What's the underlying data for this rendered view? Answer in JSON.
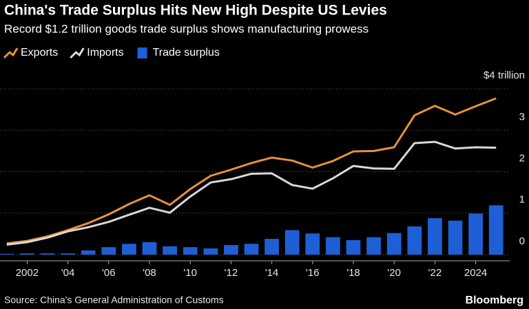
{
  "chart_data": {
    "type": "bar-line",
    "title": "China's Trade Surplus Hits New High Despite US Levies",
    "subtitle": "Record $1.2 trillion goods trade surplus shows manufacturing prowess",
    "source": "Source: China's General Administration of Customs",
    "brand": "Bloomberg",
    "x": [
      2001,
      2002,
      2003,
      2004,
      2005,
      2006,
      2007,
      2008,
      2009,
      2010,
      2011,
      2012,
      2013,
      2014,
      2015,
      2016,
      2017,
      2018,
      2019,
      2020,
      2021,
      2022,
      2023,
      2024,
      2025
    ],
    "xlim": [
      2000.5,
      2025.5
    ],
    "xticks": [
      2002,
      {
        "value": 2004,
        "label": "'04"
      },
      {
        "value": 2006,
        "label": "'06"
      },
      {
        "value": 2008,
        "label": "'08"
      },
      {
        "value": 2010,
        "label": "'10"
      },
      {
        "value": 2012,
        "label": "'12"
      },
      {
        "value": 2014,
        "label": "'14"
      },
      {
        "value": 2016,
        "label": "'16"
      },
      {
        "value": 2018,
        "label": "'18"
      },
      {
        "value": 2020,
        "label": "'20"
      },
      {
        "value": 2022,
        "label": "'22"
      },
      2024
    ],
    "ylim": [
      -0.15,
      4.25
    ],
    "yticks": [
      0,
      1,
      2,
      3,
      {
        "value": 4,
        "label": "$4 trillion"
      }
    ],
    "grid": true,
    "series": [
      {
        "name": "Exports",
        "color": "#e8913a",
        "kind": "line",
        "values": [
          0.27,
          0.33,
          0.44,
          0.59,
          0.76,
          0.97,
          1.22,
          1.43,
          1.2,
          1.58,
          1.9,
          2.05,
          2.21,
          2.34,
          2.27,
          2.1,
          2.26,
          2.49,
          2.5,
          2.59,
          3.36,
          3.59,
          3.38,
          3.58,
          3.77
        ]
      },
      {
        "name": "Imports",
        "color": "#d9d9d9",
        "kind": "line",
        "values": [
          0.24,
          0.3,
          0.41,
          0.56,
          0.66,
          0.79,
          0.96,
          1.13,
          1.01,
          1.4,
          1.74,
          1.82,
          1.95,
          1.96,
          1.68,
          1.59,
          1.84,
          2.14,
          2.08,
          2.07,
          2.69,
          2.72,
          2.56,
          2.59,
          2.58
        ]
      },
      {
        "name": "Trade surplus",
        "color": "#1f5fd6",
        "kind": "bar",
        "values": [
          0.02,
          0.03,
          0.03,
          0.03,
          0.1,
          0.18,
          0.26,
          0.3,
          0.2,
          0.18,
          0.15,
          0.23,
          0.26,
          0.38,
          0.59,
          0.51,
          0.42,
          0.35,
          0.42,
          0.52,
          0.68,
          0.88,
          0.82,
          0.99,
          1.19
        ]
      }
    ]
  }
}
